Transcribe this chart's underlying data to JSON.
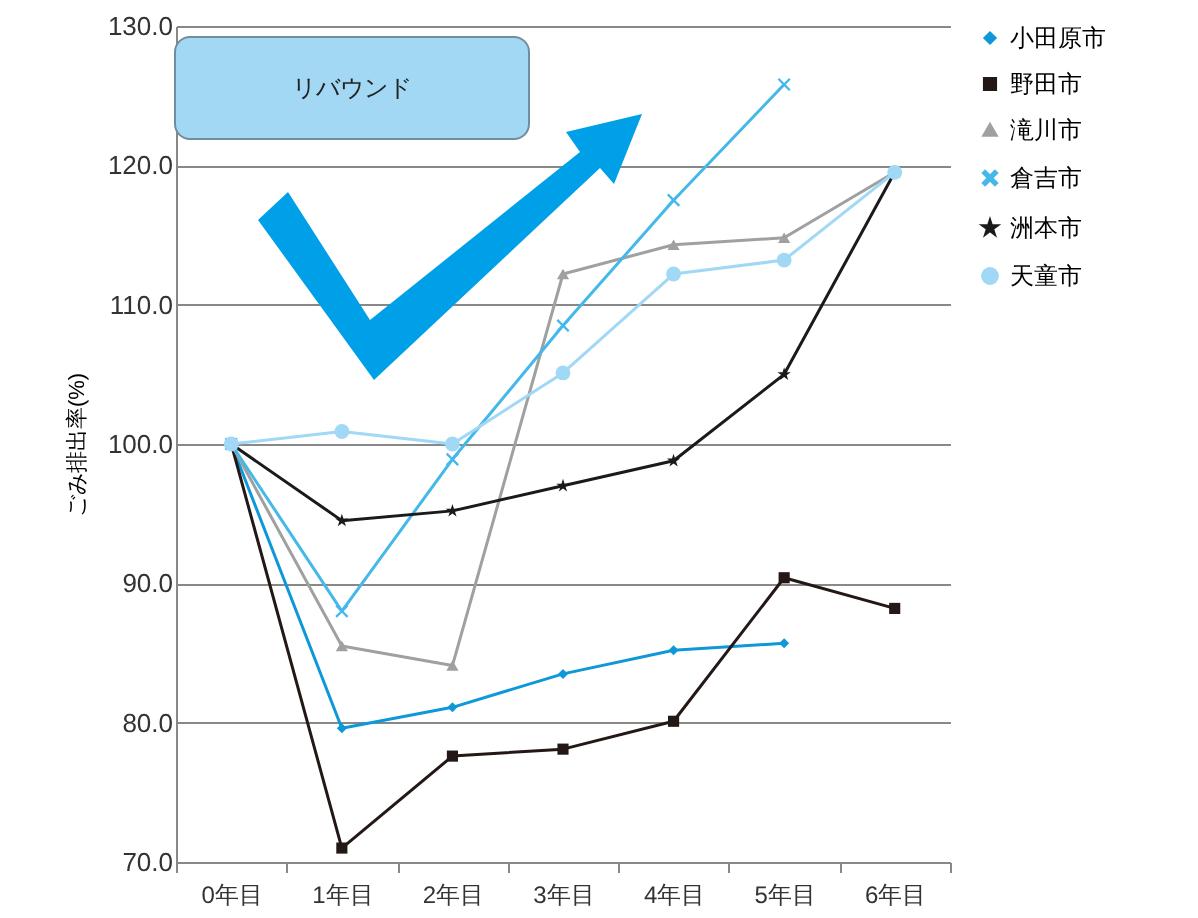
{
  "chart_data": {
    "type": "line",
    "ylabel": "ごみ排出率(%)",
    "categories": [
      "0年目",
      "1年目",
      "2年目",
      "3年目",
      "4年目",
      "5年目",
      "6年目"
    ],
    "series": [
      {
        "name": "小田原市",
        "color": "#0e98d8",
        "marker": "diamond",
        "values": [
          100.0,
          79.6,
          81.1,
          83.5,
          85.2,
          85.7,
          null
        ]
      },
      {
        "name": "野田市",
        "color": "#231815",
        "marker": "square",
        "values": [
          100.0,
          71.0,
          77.6,
          78.1,
          80.1,
          90.4,
          88.2
        ]
      },
      {
        "name": "滝川市",
        "color": "#9fa0a0",
        "marker": "triangle",
        "values": [
          100.0,
          85.5,
          84.1,
          112.2,
          114.3,
          114.8,
          119.5
        ]
      },
      {
        "name": "倉吉市",
        "color": "#45b8ea",
        "marker": "cross",
        "values": [
          100.0,
          88.0,
          98.9,
          108.5,
          117.5,
          125.8,
          null
        ]
      },
      {
        "name": "洲本市",
        "color": "#1a1a1a",
        "marker": "star",
        "values": [
          100.0,
          94.5,
          95.2,
          97.0,
          98.8,
          105.0,
          119.5
        ]
      },
      {
        "name": "天童市",
        "color": "#a0d8f5",
        "marker": "circle",
        "values": [
          100.0,
          100.9,
          100.0,
          105.1,
          112.2,
          113.2,
          119.5
        ]
      }
    ],
    "ylim": [
      70,
      130
    ],
    "yticks": [
      {
        "value": 70,
        "label": "70.0"
      },
      {
        "value": 80,
        "label": "80.0"
      },
      {
        "value": 90,
        "label": "90.0"
      },
      {
        "value": 100,
        "label": "100.0"
      },
      {
        "value": 110,
        "label": "110.0"
      },
      {
        "value": 120,
        "label": "120.0"
      },
      {
        "value": 130,
        "label": "130.0"
      }
    ],
    "grid": "y",
    "legend": "right",
    "annotations": [
      "リバウンド"
    ]
  }
}
